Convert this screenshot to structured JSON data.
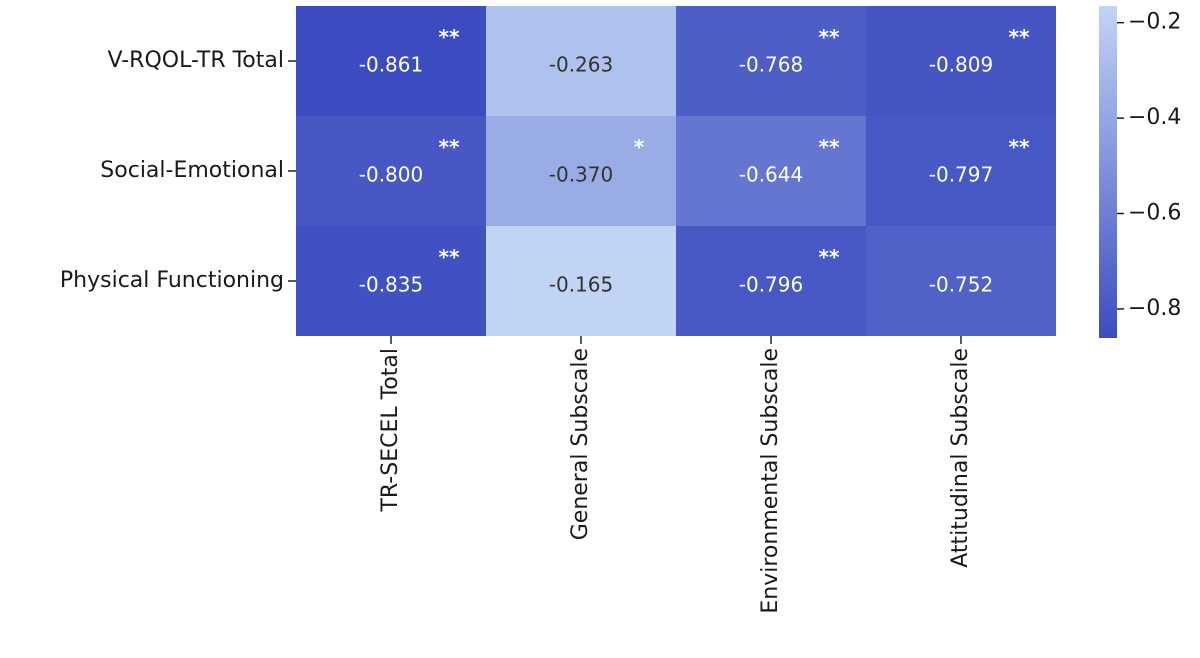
{
  "chart_data": {
    "type": "heatmap",
    "title": "",
    "xlabel": "",
    "ylabel": "",
    "rows": [
      "V-RQOL-TR Total",
      "Social-Emotional",
      "Physical Functioning"
    ],
    "columns": [
      "TR-SECEL Total",
      "General Subscale",
      "Environmental Subscale",
      "Attitudinal Subscale"
    ],
    "values": [
      [
        -0.861,
        -0.263,
        -0.768,
        -0.809
      ],
      [
        -0.8,
        -0.37,
        -0.644,
        -0.797
      ],
      [
        -0.835,
        -0.165,
        -0.796,
        -0.752
      ]
    ],
    "value_labels": [
      [
        "-0.861",
        "-0.263",
        "-0.768",
        "-0.809"
      ],
      [
        "-0.800",
        "-0.370",
        "-0.644",
        "-0.797"
      ],
      [
        "-0.835",
        "-0.165",
        "-0.796",
        "-0.752"
      ]
    ],
    "significance": [
      [
        "**",
        "",
        "**",
        "**"
      ],
      [
        "**",
        "*",
        "**",
        "**"
      ],
      [
        "**",
        "",
        "**",
        ""
      ]
    ],
    "colorbar": {
      "range": [
        -0.861,
        -0.165
      ],
      "ticks": [
        -0.2,
        -0.4,
        -0.6,
        -0.8
      ],
      "tick_labels": [
        "−0.2",
        "−0.4",
        "−0.6",
        "−0.8"
      ],
      "color_low": "#3b4cc0",
      "color_high": "#c2d4f4"
    },
    "grid": false,
    "legend": "right colorbar"
  }
}
